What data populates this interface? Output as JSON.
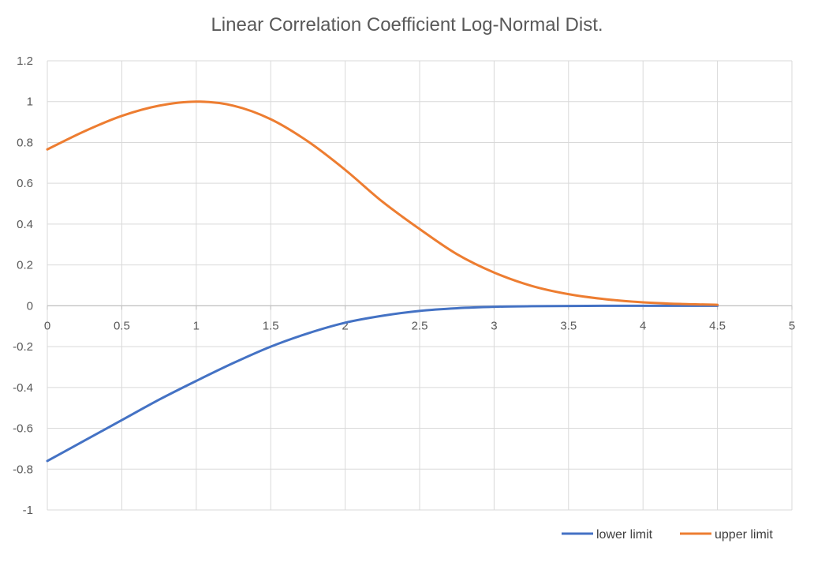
{
  "chart_data": {
    "type": "line",
    "title": "Linear Correlation Coefficient Log-Normal Dist.",
    "xlim": [
      0,
      5
    ],
    "ylim": [
      -1,
      1.2
    ],
    "x_ticks": [
      "0",
      "0.5",
      "1",
      "1.5",
      "2",
      "2.5",
      "3",
      "3.5",
      "4",
      "4.5",
      "5"
    ],
    "y_ticks": [
      "1.2",
      "1",
      "0.8",
      "0.6",
      "0.4",
      "0.2",
      "0",
      "-0.2",
      "-0.4",
      "-0.6",
      "-0.8",
      "-1"
    ],
    "grid": true,
    "legend_position": "bottom-right",
    "series": [
      {
        "name": "lower limit",
        "color": "#4472C4",
        "x": [
          0,
          0.25,
          0.5,
          0.75,
          1,
          1.25,
          1.5,
          1.75,
          2,
          2.25,
          2.5,
          2.75,
          3,
          3.25,
          3.5,
          3.75,
          4,
          4.25,
          4.5
        ],
        "values": [
          -0.76,
          -0.66,
          -0.56,
          -0.46,
          -0.368,
          -0.28,
          -0.2,
          -0.135,
          -0.083,
          -0.049,
          -0.025,
          -0.012,
          -0.005,
          -0.002,
          -0.001,
          0,
          0,
          0,
          0
        ]
      },
      {
        "name": "upper limit",
        "color": "#ED7D31",
        "x": [
          0,
          0.25,
          0.5,
          0.75,
          1,
          1.25,
          1.5,
          1.75,
          2,
          2.25,
          2.5,
          2.75,
          3,
          3.25,
          3.5,
          3.75,
          4,
          4.25,
          4.5
        ],
        "values": [
          0.766,
          0.855,
          0.93,
          0.98,
          1.0,
          0.98,
          0.914,
          0.805,
          0.666,
          0.51,
          0.376,
          0.253,
          0.163,
          0.098,
          0.057,
          0.032,
          0.017,
          0.009,
          0.005
        ]
      }
    ]
  }
}
